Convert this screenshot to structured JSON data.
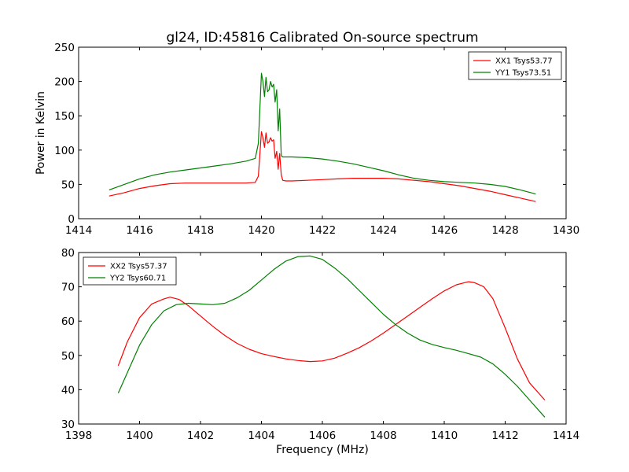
{
  "chart_data": [
    {
      "type": "line",
      "title": "gl24, ID:45816 Calibrated On-source spectrum",
      "xlabel": "",
      "ylabel": "Power in Kelvin",
      "xlim": [
        1414,
        1430
      ],
      "ylim": [
        0,
        250
      ],
      "xticks": [
        1414,
        1416,
        1418,
        1420,
        1422,
        1424,
        1426,
        1428,
        1430
      ],
      "yticks": [
        0,
        50,
        100,
        150,
        200,
        250
      ],
      "grid": false,
      "legend": "top-right",
      "series": [
        {
          "name": "XX1 Tsys53.77",
          "color": "#ff0000",
          "x": [
            1415.0,
            1415.5,
            1416.0,
            1416.5,
            1417.0,
            1417.5,
            1418.0,
            1418.5,
            1419.0,
            1419.5,
            1419.8,
            1419.9,
            1420.0,
            1420.05,
            1420.1,
            1420.15,
            1420.2,
            1420.25,
            1420.3,
            1420.35,
            1420.4,
            1420.45,
            1420.5,
            1420.55,
            1420.6,
            1420.65,
            1420.7,
            1420.8,
            1421.0,
            1421.5,
            1422.0,
            1422.5,
            1423.0,
            1423.5,
            1424.0,
            1424.5,
            1425.0,
            1425.5,
            1426.0,
            1426.5,
            1427.0,
            1427.5,
            1428.0,
            1428.5,
            1429.0
          ],
          "y": [
            33,
            38,
            44,
            48,
            51,
            52,
            52,
            52,
            52,
            52,
            53,
            62,
            127,
            118,
            104,
            125,
            110,
            112,
            118,
            113,
            115,
            88,
            98,
            72,
            95,
            64,
            56,
            55,
            55,
            56,
            57,
            58,
            59,
            59,
            59,
            58,
            56,
            54,
            51,
            48,
            44,
            40,
            35,
            30,
            25
          ]
        },
        {
          "name": "YY1 Tsys73.51",
          "color": "#008000",
          "x": [
            1415.0,
            1415.5,
            1416.0,
            1416.5,
            1417.0,
            1417.5,
            1418.0,
            1418.5,
            1419.0,
            1419.5,
            1419.8,
            1419.9,
            1420.0,
            1420.05,
            1420.1,
            1420.15,
            1420.2,
            1420.25,
            1420.3,
            1420.35,
            1420.4,
            1420.45,
            1420.5,
            1420.55,
            1420.6,
            1420.65,
            1420.7,
            1420.8,
            1421.0,
            1421.5,
            1422.0,
            1422.5,
            1423.0,
            1423.5,
            1424.0,
            1424.5,
            1425.0,
            1425.5,
            1426.0,
            1426.5,
            1427.0,
            1427.5,
            1428.0,
            1428.5,
            1429.0
          ],
          "y": [
            42,
            50,
            58,
            64,
            68,
            71,
            74,
            77,
            80,
            84,
            88,
            110,
            212,
            200,
            178,
            206,
            185,
            188,
            200,
            192,
            196,
            170,
            188,
            128,
            160,
            92,
            90,
            90,
            90,
            89,
            87,
            84,
            80,
            75,
            70,
            64,
            59,
            56,
            54,
            53,
            52,
            50,
            47,
            42,
            36
          ]
        }
      ]
    },
    {
      "type": "line",
      "title": "",
      "xlabel": "Frequency (MHz)",
      "ylabel": "",
      "xlim": [
        1398,
        1414
      ],
      "ylim": [
        30,
        80
      ],
      "xticks": [
        1398,
        1400,
        1402,
        1404,
        1406,
        1408,
        1410,
        1412,
        1414
      ],
      "yticks": [
        30,
        40,
        50,
        60,
        70,
        80
      ],
      "grid": false,
      "legend": "top-left",
      "series": [
        {
          "name": "XX2 Tsys57.37",
          "color": "#ff0000",
          "x": [
            1399.3,
            1399.6,
            1400.0,
            1400.4,
            1400.8,
            1401.0,
            1401.3,
            1401.6,
            1402.0,
            1402.4,
            1402.8,
            1403.2,
            1403.6,
            1404.0,
            1404.4,
            1404.8,
            1405.2,
            1405.6,
            1406.0,
            1406.4,
            1406.8,
            1407.2,
            1407.6,
            1408.0,
            1408.4,
            1408.8,
            1409.2,
            1409.6,
            1410.0,
            1410.4,
            1410.8,
            1411.0,
            1411.3,
            1411.6,
            1412.0,
            1412.4,
            1412.8,
            1413.3
          ],
          "y": [
            47,
            54,
            61,
            65,
            66.5,
            67,
            66.3,
            64.5,
            61.5,
            58.5,
            55.8,
            53.5,
            51.8,
            50.5,
            49.7,
            49.0,
            48.5,
            48.2,
            48.4,
            49.2,
            50.6,
            52.2,
            54.2,
            56.5,
            59.0,
            61.5,
            64.0,
            66.5,
            68.8,
            70.6,
            71.5,
            71.2,
            70.0,
            66.5,
            58.0,
            49.0,
            42.0,
            37.0
          ]
        },
        {
          "name": "YY2 Tsys60.71",
          "color": "#008000",
          "x": [
            1399.3,
            1399.6,
            1400.0,
            1400.4,
            1400.8,
            1401.2,
            1401.6,
            1402.0,
            1402.4,
            1402.8,
            1403.2,
            1403.6,
            1404.0,
            1404.4,
            1404.8,
            1405.2,
            1405.6,
            1406.0,
            1406.4,
            1406.8,
            1407.2,
            1407.6,
            1408.0,
            1408.4,
            1408.8,
            1409.2,
            1409.6,
            1410.0,
            1410.4,
            1410.8,
            1411.2,
            1411.6,
            1412.0,
            1412.4,
            1412.8,
            1413.3
          ],
          "y": [
            39,
            45,
            53,
            59,
            63,
            64.8,
            65.2,
            65,
            64.8,
            65.2,
            66.8,
            69.0,
            72.0,
            75.0,
            77.5,
            78.8,
            79.0,
            78.0,
            75.5,
            72.5,
            69.0,
            65.5,
            62.0,
            59.0,
            56.5,
            54.5,
            53.2,
            52.3,
            51.5,
            50.5,
            49.5,
            47.5,
            44.5,
            41.0,
            37.0,
            32.0
          ]
        }
      ]
    }
  ]
}
